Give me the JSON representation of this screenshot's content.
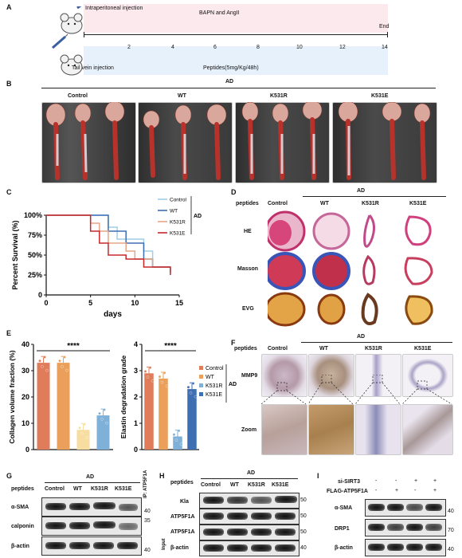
{
  "panel_labels": {
    "a": "A",
    "b": "B",
    "c": "C",
    "d": "D",
    "e": "E",
    "f": "F",
    "g": "G",
    "h": "H",
    "i": "I"
  },
  "panel_a": {
    "ip_label": "Intraperitoneal injection",
    "drug": "BAPN and AngII",
    "end": "End",
    "iv_label": "Tail vein injection",
    "peptide": "Peptides(5mg/Kg/48h)",
    "ticks": [
      "2",
      "4",
      "6",
      "8",
      "10",
      "12",
      "14"
    ]
  },
  "panel_b": {
    "group": "AD",
    "cols": [
      "Control",
      "WT",
      "K531R",
      "K531E"
    ]
  },
  "chart_data": [
    {
      "type": "line",
      "panel": "C",
      "ylabel": "Percent Survival (%)",
      "xlabel": "days",
      "xlim": [
        0,
        15
      ],
      "ylim": [
        0,
        100
      ],
      "xticks": [
        "0",
        "5",
        "10",
        "15"
      ],
      "yticks": [
        "0",
        "25%",
        "50%",
        "75%",
        "100%"
      ],
      "legend_group": "AD",
      "series": [
        {
          "name": "Control",
          "color": "#9fcfe6",
          "x": [
            0,
            6,
            7,
            8,
            11,
            12,
            14
          ],
          "y": [
            100,
            100,
            85,
            70,
            55,
            35,
            30
          ]
        },
        {
          "name": "WT",
          "color": "#3e6fb3",
          "x": [
            0,
            6,
            7,
            9,
            11,
            12,
            14
          ],
          "y": [
            100,
            100,
            80,
            65,
            45,
            35,
            28
          ]
        },
        {
          "name": "K531R",
          "color": "#e6a587",
          "x": [
            0,
            5,
            6,
            7,
            9,
            10,
            12,
            14
          ],
          "y": [
            100,
            90,
            80,
            65,
            55,
            45,
            35,
            30
          ]
        },
        {
          "name": "K531E",
          "color": "#c6282c",
          "x": [
            0,
            5,
            6,
            7,
            9,
            11,
            14
          ],
          "y": [
            100,
            80,
            65,
            50,
            45,
            35,
            25
          ]
        }
      ]
    },
    {
      "type": "bar",
      "panel": "E-left",
      "ylabel": "Collagen volume fraction (%)",
      "ylim": [
        0,
        40
      ],
      "yticks": [
        "0",
        "10",
        "20",
        "30",
        "40"
      ],
      "significance": "****",
      "categories": [
        "Control",
        "WT",
        "K531R",
        "K531E"
      ],
      "values": [
        33,
        33,
        7.5,
        13
      ],
      "colors": [
        "#e07c5a",
        "#eaa05a",
        "#f7dea0",
        "#7fb0d8"
      ]
    },
    {
      "type": "bar",
      "panel": "E-right",
      "ylabel": "Elastin degradation grade",
      "ylim": [
        0,
        4
      ],
      "yticks": [
        "0",
        "1",
        "2",
        "3",
        "4"
      ],
      "significance": "****",
      "categories": [
        "Control",
        "WT",
        "K531R",
        "K531E"
      ],
      "values": [
        2.9,
        2.7,
        0.5,
        2.3
      ],
      "colors": [
        "#e07c5a",
        "#eaa05a",
        "#7fb0d8",
        "#3e6fb3"
      ],
      "legend_group": "AD"
    }
  ],
  "panel_d": {
    "group": "AD",
    "header": "peptides",
    "cols": [
      "Control",
      "WT",
      "K531R",
      "K531E"
    ],
    "rows": [
      "HE",
      "Masson",
      "EVG"
    ]
  },
  "panel_f": {
    "group": "AD",
    "header": "peptides",
    "cols": [
      "Control",
      "WT",
      "K531R",
      "K531E"
    ],
    "rows": [
      "MMP9",
      "Zoom"
    ]
  },
  "panel_g": {
    "group": "AD",
    "header": "peptides",
    "cols": [
      "Control",
      "WT",
      "K531R",
      "K531E"
    ],
    "rows": [
      "α-SMA",
      "calponin",
      "β-actin"
    ],
    "mw": [
      "40",
      "35",
      "40"
    ]
  },
  "panel_h": {
    "group": "AD",
    "header": "peptides",
    "cols": [
      "Control",
      "WT",
      "K531R",
      "K531E"
    ],
    "ip_label": "IP: ATP5F1A",
    "input_label": "Input",
    "rows": [
      "Kla",
      "ATP5F1A",
      "ATP5F1A",
      "β-actin"
    ],
    "mw": [
      "50",
      "50",
      "50",
      "40"
    ]
  },
  "panel_i": {
    "row1": "si-SIRT3",
    "row2": "FLAG-ATP5F1A",
    "signs1": [
      "-",
      "-",
      "+",
      "+"
    ],
    "signs2": [
      "-",
      "+",
      "-",
      "+"
    ],
    "rows": [
      "α-SMA",
      "DRP1",
      "β-actin"
    ],
    "mw": [
      "40",
      "70",
      "40"
    ]
  }
}
